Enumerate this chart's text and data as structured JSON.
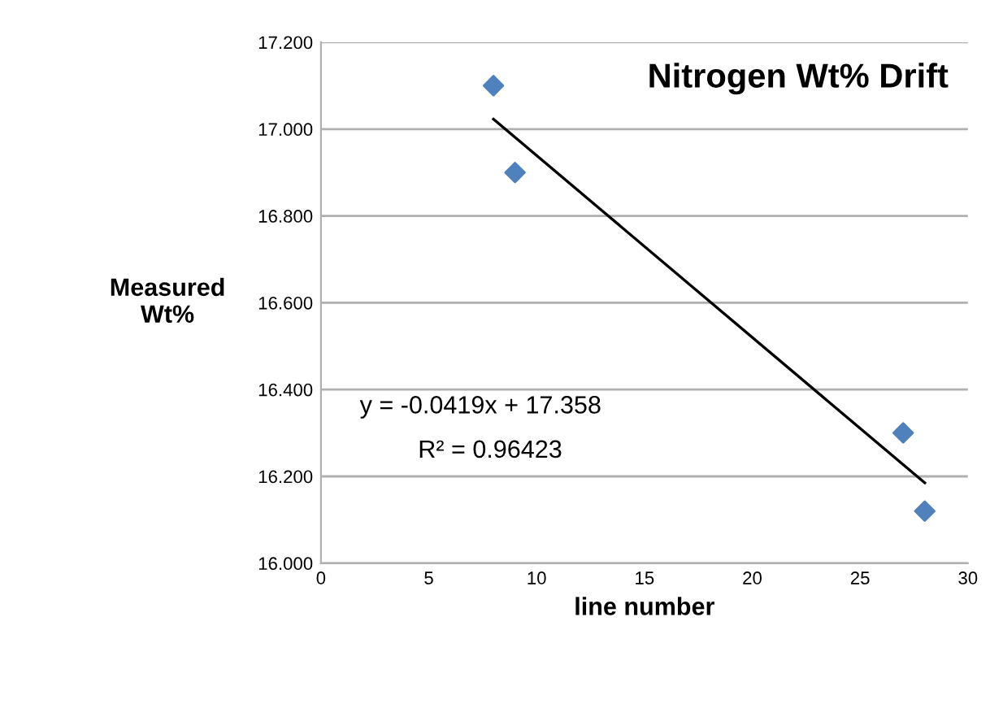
{
  "chart_data": {
    "type": "scatter",
    "title": "Nitrogen Wt% Drift",
    "xlabel": "line number",
    "ylabel": "Measured\nWt%",
    "annotations": [
      "y = -0.0419x + 17.358",
      "R² = 0.96423"
    ],
    "series": [
      {
        "color": "#4f81bd",
        "x": [
          8,
          9,
          27,
          28
        ],
        "values": [
          17.1,
          16.9,
          16.3,
          16.12
        ],
        "marker": "diamond"
      },
      {
        "type": "line",
        "color": "#000000",
        "x": [
          8,
          28
        ],
        "values": [
          17.023,
          16.185
        ],
        "marker": "none",
        "line_style": "solid"
      }
    ],
    "xlim": [
      0,
      30
    ],
    "xticks": [
      0,
      5,
      10,
      15,
      20,
      25,
      30
    ],
    "ylim": [
      16.0,
      17.2
    ],
    "yticks": [
      {
        "value": 16.0,
        "label": "16.000"
      },
      {
        "value": 16.2,
        "label": "16.200"
      },
      {
        "value": 16.4,
        "label": "16.400"
      },
      {
        "value": 16.6,
        "label": "16.600"
      },
      {
        "value": 16.8,
        "label": "16.800"
      },
      {
        "value": 17.0,
        "label": "17.000"
      },
      {
        "value": 17.2,
        "label": "17.200"
      }
    ],
    "grid": "y",
    "legend": false
  }
}
